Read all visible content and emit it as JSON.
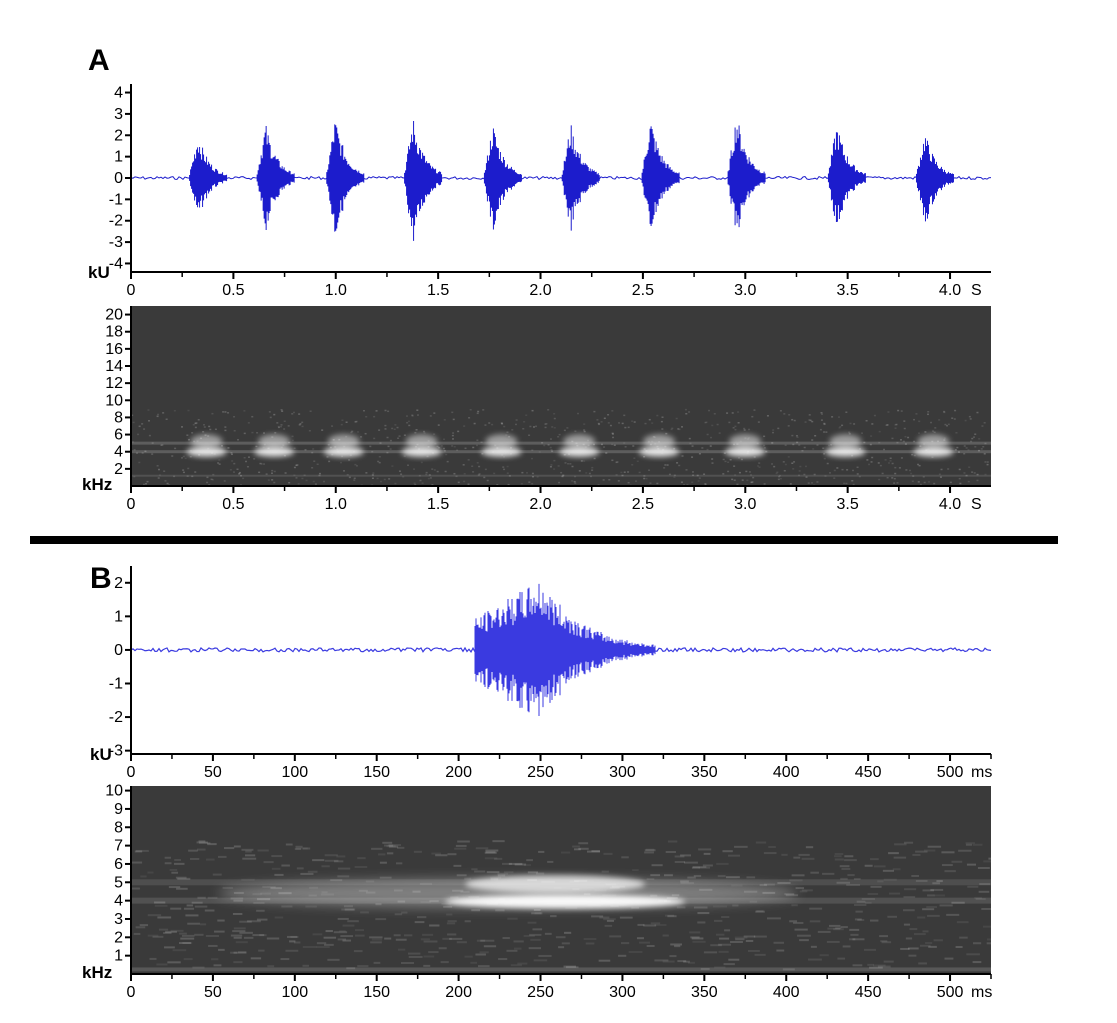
{
  "panel_a_label": "A",
  "panel_b_label": "B",
  "colors": {
    "waveform": "#1c1ccc",
    "waveform_b": "#3a3ae0",
    "spectrogram_bg": "#3a3a3a",
    "divider": "#000000"
  },
  "chart_data": [
    {
      "type": "line",
      "name": "panel-a-waveform",
      "ylabel": "kU",
      "x_unit_label": "S",
      "x_range": [
        0,
        4.2
      ],
      "ylim": [
        -4,
        4
      ],
      "x_ticks": [
        "0",
        "0.5",
        "1.0",
        "1.5",
        "2.0",
        "2.5",
        "3.0",
        "3.5",
        "4.0"
      ],
      "x_tick_values": [
        0,
        0.5,
        1.0,
        1.5,
        2.0,
        2.5,
        3.0,
        3.5,
        4.0
      ],
      "y_ticks": [
        "4",
        "3",
        "2",
        "1",
        "0",
        "-1",
        "-2",
        "-3",
        "-4"
      ],
      "y_tick_values": [
        4,
        3,
        2,
        1,
        0,
        -1,
        -2,
        -3,
        -4
      ],
      "pulses": [
        {
          "t": 0.33,
          "max": 2.1,
          "min": -2.0
        },
        {
          "t": 0.66,
          "max": 2.6,
          "min": -2.6
        },
        {
          "t": 1.0,
          "max": 2.9,
          "min": -2.9
        },
        {
          "t": 1.38,
          "max": 2.9,
          "min": -3.2
        },
        {
          "t": 1.77,
          "max": 2.6,
          "min": -2.7
        },
        {
          "t": 2.15,
          "max": 2.6,
          "min": -2.6
        },
        {
          "t": 2.54,
          "max": 2.9,
          "min": -2.7
        },
        {
          "t": 2.96,
          "max": 3.1,
          "min": -2.9
        },
        {
          "t": 3.45,
          "max": 2.6,
          "min": -2.5
        },
        {
          "t": 3.88,
          "max": 2.2,
          "min": -2.4
        }
      ]
    },
    {
      "type": "heatmap",
      "name": "panel-a-spectrogram",
      "ylabel": "kHz",
      "x_unit_label": "S",
      "x_range": [
        0,
        4.2
      ],
      "ylim": [
        0,
        21
      ],
      "x_ticks": [
        "0",
        "0.5",
        "1.0",
        "1.5",
        "2.0",
        "2.5",
        "3.0",
        "3.5",
        "4.0"
      ],
      "x_tick_values": [
        0,
        0.5,
        1.0,
        1.5,
        2.0,
        2.5,
        3.0,
        3.5,
        4.0
      ],
      "y_ticks": [
        "20",
        "18",
        "16",
        "14",
        "12",
        "10",
        "8",
        "6",
        "4",
        "2"
      ],
      "y_tick_values": [
        20,
        18,
        16,
        14,
        12,
        10,
        8,
        6,
        4,
        2
      ],
      "bands_khz": [
        4,
        5
      ],
      "pulse_times": [
        0.33,
        0.66,
        1.0,
        1.38,
        1.77,
        2.15,
        2.54,
        2.96,
        3.45,
        3.88
      ]
    },
    {
      "type": "line",
      "name": "panel-b-waveform",
      "ylabel": "kU",
      "x_unit_label": "ms",
      "x_range": [
        0,
        525
      ],
      "ylim": [
        -3,
        2.5
      ],
      "x_ticks": [
        "0",
        "50",
        "100",
        "150",
        "200",
        "250",
        "300",
        "350",
        "400",
        "450",
        "500"
      ],
      "x_tick_values": [
        0,
        50,
        100,
        150,
        200,
        250,
        300,
        350,
        400,
        450,
        500
      ],
      "y_ticks": [
        "2",
        "1",
        "0",
        "-1",
        "-2",
        "-3"
      ],
      "y_tick_values": [
        2,
        1,
        0,
        -1,
        -2,
        -3
      ],
      "pulse": {
        "start": 210,
        "peak": 250,
        "end": 320,
        "max": 2.1,
        "min": -2.1
      }
    },
    {
      "type": "heatmap",
      "name": "panel-b-spectrogram",
      "ylabel": "kHz",
      "x_unit_label": "ms",
      "x_range": [
        0,
        525
      ],
      "ylim": [
        0,
        10.2
      ],
      "x_ticks": [
        "0",
        "50",
        "100",
        "150",
        "200",
        "250",
        "300",
        "350",
        "400",
        "450",
        "500"
      ],
      "x_tick_values": [
        0,
        50,
        100,
        150,
        200,
        250,
        300,
        350,
        400,
        450,
        500
      ],
      "y_ticks": [
        "10",
        "9",
        "8",
        "7",
        "6",
        "5",
        "4",
        "3",
        "2",
        "1"
      ],
      "y_tick_values": [
        10,
        9,
        8,
        7,
        6,
        5,
        4,
        3,
        2,
        1
      ],
      "bands_khz": [
        4,
        5
      ],
      "pulse": {
        "start": 210,
        "end": 320
      }
    }
  ]
}
